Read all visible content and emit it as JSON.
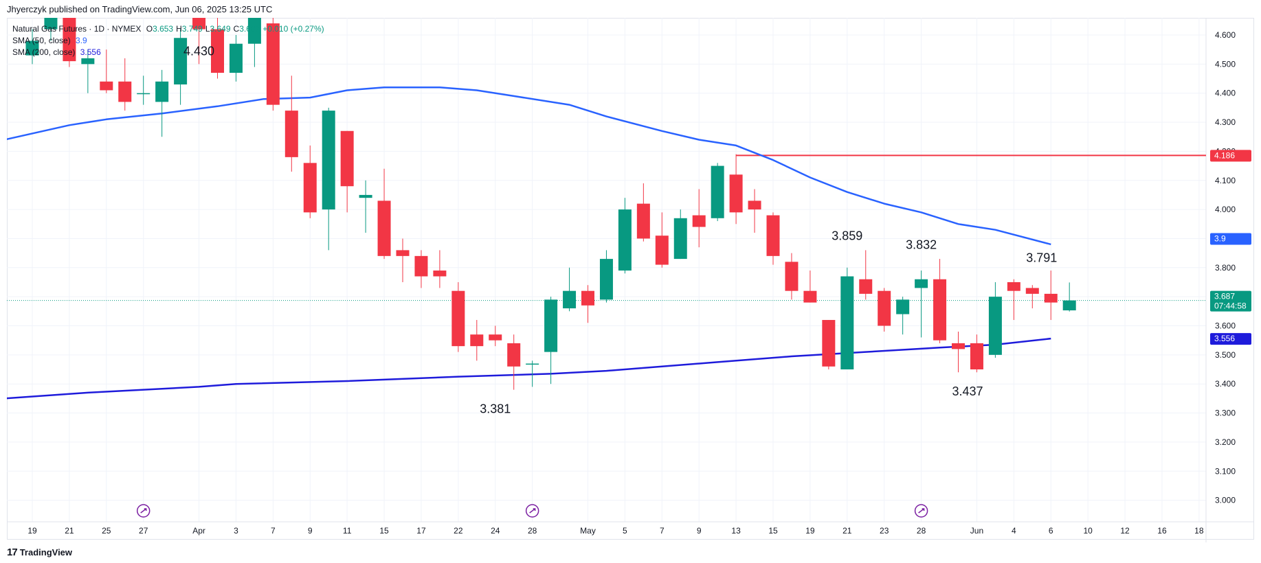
{
  "header": {
    "published_text": "Jhyerczyk published on TradingView.com, Jun 06, 2025 13:25 UTC"
  },
  "legend": {
    "symbol": "Natural Gas Futures · 1D · NYMEX",
    "ohlc": {
      "o_label": "O",
      "o": "3.653",
      "h_label": "H",
      "h": "3.749",
      "l_label": "L",
      "l": "3.649",
      "c_label": "C",
      "c": "3.687",
      "change": "+0.010 (+0.27%)"
    },
    "sma50_label": "SMA (50, close)",
    "sma50_value": "3.9",
    "sma200_label": "SMA (200, close)",
    "sma200_value": "3.556"
  },
  "footer": {
    "logo_text": "TradingView"
  },
  "colors": {
    "up": "#089981",
    "down": "#f23645",
    "sma50": "#2962ff",
    "sma200": "#1e1bdb",
    "resistance": "#f23645",
    "grid": "#f0f3fa"
  },
  "chart_data": {
    "type": "candlestick",
    "ylim": [
      2.95,
      4.66
    ],
    "y_ticks": [
      "4.600",
      "4.500",
      "4.400",
      "4.300",
      "4.200",
      "4.100",
      "4.000",
      "3.900",
      "3.800",
      "3.700",
      "3.600",
      "3.500",
      "3.400",
      "3.300",
      "3.200",
      "3.100",
      "3.000"
    ],
    "x_ticks": [
      {
        "label": "19",
        "bar": 0
      },
      {
        "label": "21",
        "bar": 2
      },
      {
        "label": "25",
        "bar": 4
      },
      {
        "label": "27",
        "bar": 6
      },
      {
        "label": "Apr",
        "bar": 9
      },
      {
        "label": "3",
        "bar": 11
      },
      {
        "label": "7",
        "bar": 13
      },
      {
        "label": "9",
        "bar": 15
      },
      {
        "label": "11",
        "bar": 17
      },
      {
        "label": "15",
        "bar": 19
      },
      {
        "label": "17",
        "bar": 21
      },
      {
        "label": "22",
        "bar": 23
      },
      {
        "label": "24",
        "bar": 25
      },
      {
        "label": "28",
        "bar": 27
      },
      {
        "label": "May",
        "bar": 30
      },
      {
        "label": "5",
        "bar": 32
      },
      {
        "label": "7",
        "bar": 34
      },
      {
        "label": "9",
        "bar": 36
      },
      {
        "label": "13",
        "bar": 38
      },
      {
        "label": "15",
        "bar": 40
      },
      {
        "label": "19",
        "bar": 42
      },
      {
        "label": "21",
        "bar": 44
      },
      {
        "label": "23",
        "bar": 46
      },
      {
        "label": "28",
        "bar": 48
      },
      {
        "label": "Jun",
        "bar": 51
      },
      {
        "label": "4",
        "bar": 53
      },
      {
        "label": "6",
        "bar": 55
      },
      {
        "label": "10",
        "bar": 57
      },
      {
        "label": "12",
        "bar": 59
      },
      {
        "label": "16",
        "bar": 61
      },
      {
        "label": "18",
        "bar": 63
      }
    ],
    "candles": [
      {
        "o": 4.53,
        "h": 4.62,
        "l": 4.5,
        "c": 4.58
      },
      {
        "o": 4.62,
        "h": 4.7,
        "l": 4.58,
        "c": 4.66
      },
      {
        "o": 4.66,
        "h": 4.68,
        "l": 4.49,
        "c": 4.51
      },
      {
        "o": 4.5,
        "h": 4.55,
        "l": 4.4,
        "c": 4.52
      },
      {
        "o": 4.44,
        "h": 4.55,
        "l": 4.4,
        "c": 4.41
      },
      {
        "o": 4.44,
        "h": 4.52,
        "l": 4.34,
        "c": 4.37
      },
      {
        "o": 4.4,
        "h": 4.46,
        "l": 4.36,
        "c": 4.4
      },
      {
        "o": 4.37,
        "h": 4.48,
        "l": 4.25,
        "c": 4.44
      },
      {
        "o": 4.43,
        "h": 4.62,
        "l": 4.36,
        "c": 4.59
      },
      {
        "o": 4.66,
        "h": 4.68,
        "l": 4.5,
        "c": 4.62
      },
      {
        "o": 4.62,
        "h": 4.68,
        "l": 4.45,
        "c": 4.47
      },
      {
        "o": 4.47,
        "h": 4.6,
        "l": 4.44,
        "c": 4.57
      },
      {
        "o": 4.57,
        "h": 4.68,
        "l": 4.49,
        "c": 4.67
      },
      {
        "o": 4.64,
        "h": 4.66,
        "l": 4.34,
        "c": 4.36
      },
      {
        "o": 4.34,
        "h": 4.46,
        "l": 4.13,
        "c": 4.18
      },
      {
        "o": 4.16,
        "h": 4.22,
        "l": 3.97,
        "c": 3.99
      },
      {
        "o": 4.0,
        "h": 4.35,
        "l": 3.86,
        "c": 4.34
      },
      {
        "o": 4.27,
        "h": 4.27,
        "l": 3.99,
        "c": 4.08
      },
      {
        "o": 4.04,
        "h": 4.1,
        "l": 3.92,
        "c": 4.05
      },
      {
        "o": 4.03,
        "h": 4.14,
        "l": 3.83,
        "c": 3.84
      },
      {
        "o": 3.86,
        "h": 3.9,
        "l": 3.75,
        "c": 3.84
      },
      {
        "o": 3.84,
        "h": 3.86,
        "l": 3.73,
        "c": 3.77
      },
      {
        "o": 3.79,
        "h": 3.86,
        "l": 3.73,
        "c": 3.77
      },
      {
        "o": 3.72,
        "h": 3.75,
        "l": 3.51,
        "c": 3.53
      },
      {
        "o": 3.57,
        "h": 3.62,
        "l": 3.48,
        "c": 3.53
      },
      {
        "o": 3.57,
        "h": 3.6,
        "l": 3.53,
        "c": 3.55
      },
      {
        "o": 3.54,
        "h": 3.57,
        "l": 3.38,
        "c": 3.46
      },
      {
        "o": 3.47,
        "h": 3.48,
        "l": 3.39,
        "c": 3.47
      },
      {
        "o": 3.51,
        "h": 3.7,
        "l": 3.4,
        "c": 3.69
      },
      {
        "o": 3.66,
        "h": 3.8,
        "l": 3.65,
        "c": 3.72
      },
      {
        "o": 3.72,
        "h": 3.74,
        "l": 3.61,
        "c": 3.67
      },
      {
        "o": 3.69,
        "h": 3.86,
        "l": 3.68,
        "c": 3.83
      },
      {
        "o": 3.79,
        "h": 4.04,
        "l": 3.78,
        "c": 4.0
      },
      {
        "o": 4.02,
        "h": 4.09,
        "l": 3.89,
        "c": 3.9
      },
      {
        "o": 3.91,
        "h": 3.99,
        "l": 3.8,
        "c": 3.81
      },
      {
        "o": 3.83,
        "h": 4.0,
        "l": 3.83,
        "c": 3.97
      },
      {
        "o": 3.98,
        "h": 4.07,
        "l": 3.87,
        "c": 3.94
      },
      {
        "o": 3.97,
        "h": 4.16,
        "l": 3.96,
        "c": 4.15
      },
      {
        "o": 4.12,
        "h": 4.19,
        "l": 3.95,
        "c": 3.99
      },
      {
        "o": 4.03,
        "h": 4.07,
        "l": 3.92,
        "c": 4.0
      },
      {
        "o": 3.98,
        "h": 3.99,
        "l": 3.81,
        "c": 3.84
      },
      {
        "o": 3.82,
        "h": 3.85,
        "l": 3.69,
        "c": 3.72
      },
      {
        "o": 3.72,
        "h": 3.79,
        "l": 3.68,
        "c": 3.68
      },
      {
        "o": 3.62,
        "h": 3.62,
        "l": 3.45,
        "c": 3.46
      },
      {
        "o": 3.45,
        "h": 3.8,
        "l": 3.45,
        "c": 3.77
      },
      {
        "o": 3.76,
        "h": 3.86,
        "l": 3.69,
        "c": 3.71
      },
      {
        "o": 3.72,
        "h": 3.73,
        "l": 3.58,
        "c": 3.6
      },
      {
        "o": 3.64,
        "h": 3.7,
        "l": 3.57,
        "c": 3.69
      },
      {
        "o": 3.73,
        "h": 3.79,
        "l": 3.56,
        "c": 3.76
      },
      {
        "o": 3.76,
        "h": 3.83,
        "l": 3.54,
        "c": 3.55
      },
      {
        "o": 3.54,
        "h": 3.58,
        "l": 3.44,
        "c": 3.52
      },
      {
        "o": 3.54,
        "h": 3.57,
        "l": 3.44,
        "c": 3.45
      },
      {
        "o": 3.5,
        "h": 3.75,
        "l": 3.49,
        "c": 3.7
      },
      {
        "o": 3.75,
        "h": 3.76,
        "l": 3.62,
        "c": 3.72
      },
      {
        "o": 3.73,
        "h": 3.74,
        "l": 3.66,
        "c": 3.71
      },
      {
        "o": 3.71,
        "h": 3.79,
        "l": 3.62,
        "c": 3.68
      },
      {
        "o": 3.653,
        "h": 3.749,
        "l": 3.649,
        "c": 3.687
      }
    ],
    "sma50": [
      {
        "bar": -1.5,
        "v": 4.24
      },
      {
        "bar": 2,
        "v": 4.29
      },
      {
        "bar": 4,
        "v": 4.31
      },
      {
        "bar": 7,
        "v": 4.33
      },
      {
        "bar": 10,
        "v": 4.355
      },
      {
        "bar": 12.5,
        "v": 4.38
      },
      {
        "bar": 15,
        "v": 4.385
      },
      {
        "bar": 17,
        "v": 4.41
      },
      {
        "bar": 19,
        "v": 4.42
      },
      {
        "bar": 22,
        "v": 4.42
      },
      {
        "bar": 24,
        "v": 4.41
      },
      {
        "bar": 26,
        "v": 4.39
      },
      {
        "bar": 29,
        "v": 4.36
      },
      {
        "bar": 31,
        "v": 4.32
      },
      {
        "bar": 34,
        "v": 4.27
      },
      {
        "bar": 36,
        "v": 4.24
      },
      {
        "bar": 38,
        "v": 4.22
      },
      {
        "bar": 40,
        "v": 4.17
      },
      {
        "bar": 42,
        "v": 4.11
      },
      {
        "bar": 44,
        "v": 4.06
      },
      {
        "bar": 46,
        "v": 4.02
      },
      {
        "bar": 48,
        "v": 3.99
      },
      {
        "bar": 50,
        "v": 3.95
      },
      {
        "bar": 52,
        "v": 3.93
      },
      {
        "bar": 55,
        "v": 3.88
      }
    ],
    "sma200": [
      {
        "bar": -1.5,
        "v": 3.35
      },
      {
        "bar": 3,
        "v": 3.37
      },
      {
        "bar": 9,
        "v": 3.39
      },
      {
        "bar": 11,
        "v": 3.4
      },
      {
        "bar": 17,
        "v": 3.41
      },
      {
        "bar": 23,
        "v": 3.425
      },
      {
        "bar": 28,
        "v": 3.435
      },
      {
        "bar": 31,
        "v": 3.445
      },
      {
        "bar": 34,
        "v": 3.46
      },
      {
        "bar": 37,
        "v": 3.475
      },
      {
        "bar": 41,
        "v": 3.495
      },
      {
        "bar": 45,
        "v": 3.51
      },
      {
        "bar": 49,
        "v": 3.525
      },
      {
        "bar": 52,
        "v": 3.535
      },
      {
        "bar": 55,
        "v": 3.556
      }
    ],
    "resistance": {
      "value": 4.186,
      "from_bar": 38
    },
    "current_price": {
      "value": 3.687,
      "label": "3.687",
      "countdown": "07:44:58"
    },
    "price_badges": [
      {
        "value": 4.186,
        "label": "4.186",
        "color": "#f23645"
      },
      {
        "value": 3.9,
        "label": "3.9",
        "color": "#2962ff"
      },
      {
        "value": 3.556,
        "label": "3.556",
        "color": "#1e1bdb"
      }
    ],
    "annotations": [
      {
        "text": "4.430",
        "bar": 9,
        "v": 4.53
      },
      {
        "text": "3.381",
        "bar": 25,
        "v": 3.3
      },
      {
        "text": "3.859",
        "bar": 44,
        "v": 3.895
      },
      {
        "text": "3.832",
        "bar": 48,
        "v": 3.865
      },
      {
        "text": "3.437",
        "bar": 50.5,
        "v": 3.36
      },
      {
        "text": "3.791",
        "bar": 54.5,
        "v": 3.82
      }
    ],
    "event_markers": [
      {
        "bar": 6
      },
      {
        "bar": 27
      },
      {
        "bar": 48
      }
    ]
  }
}
